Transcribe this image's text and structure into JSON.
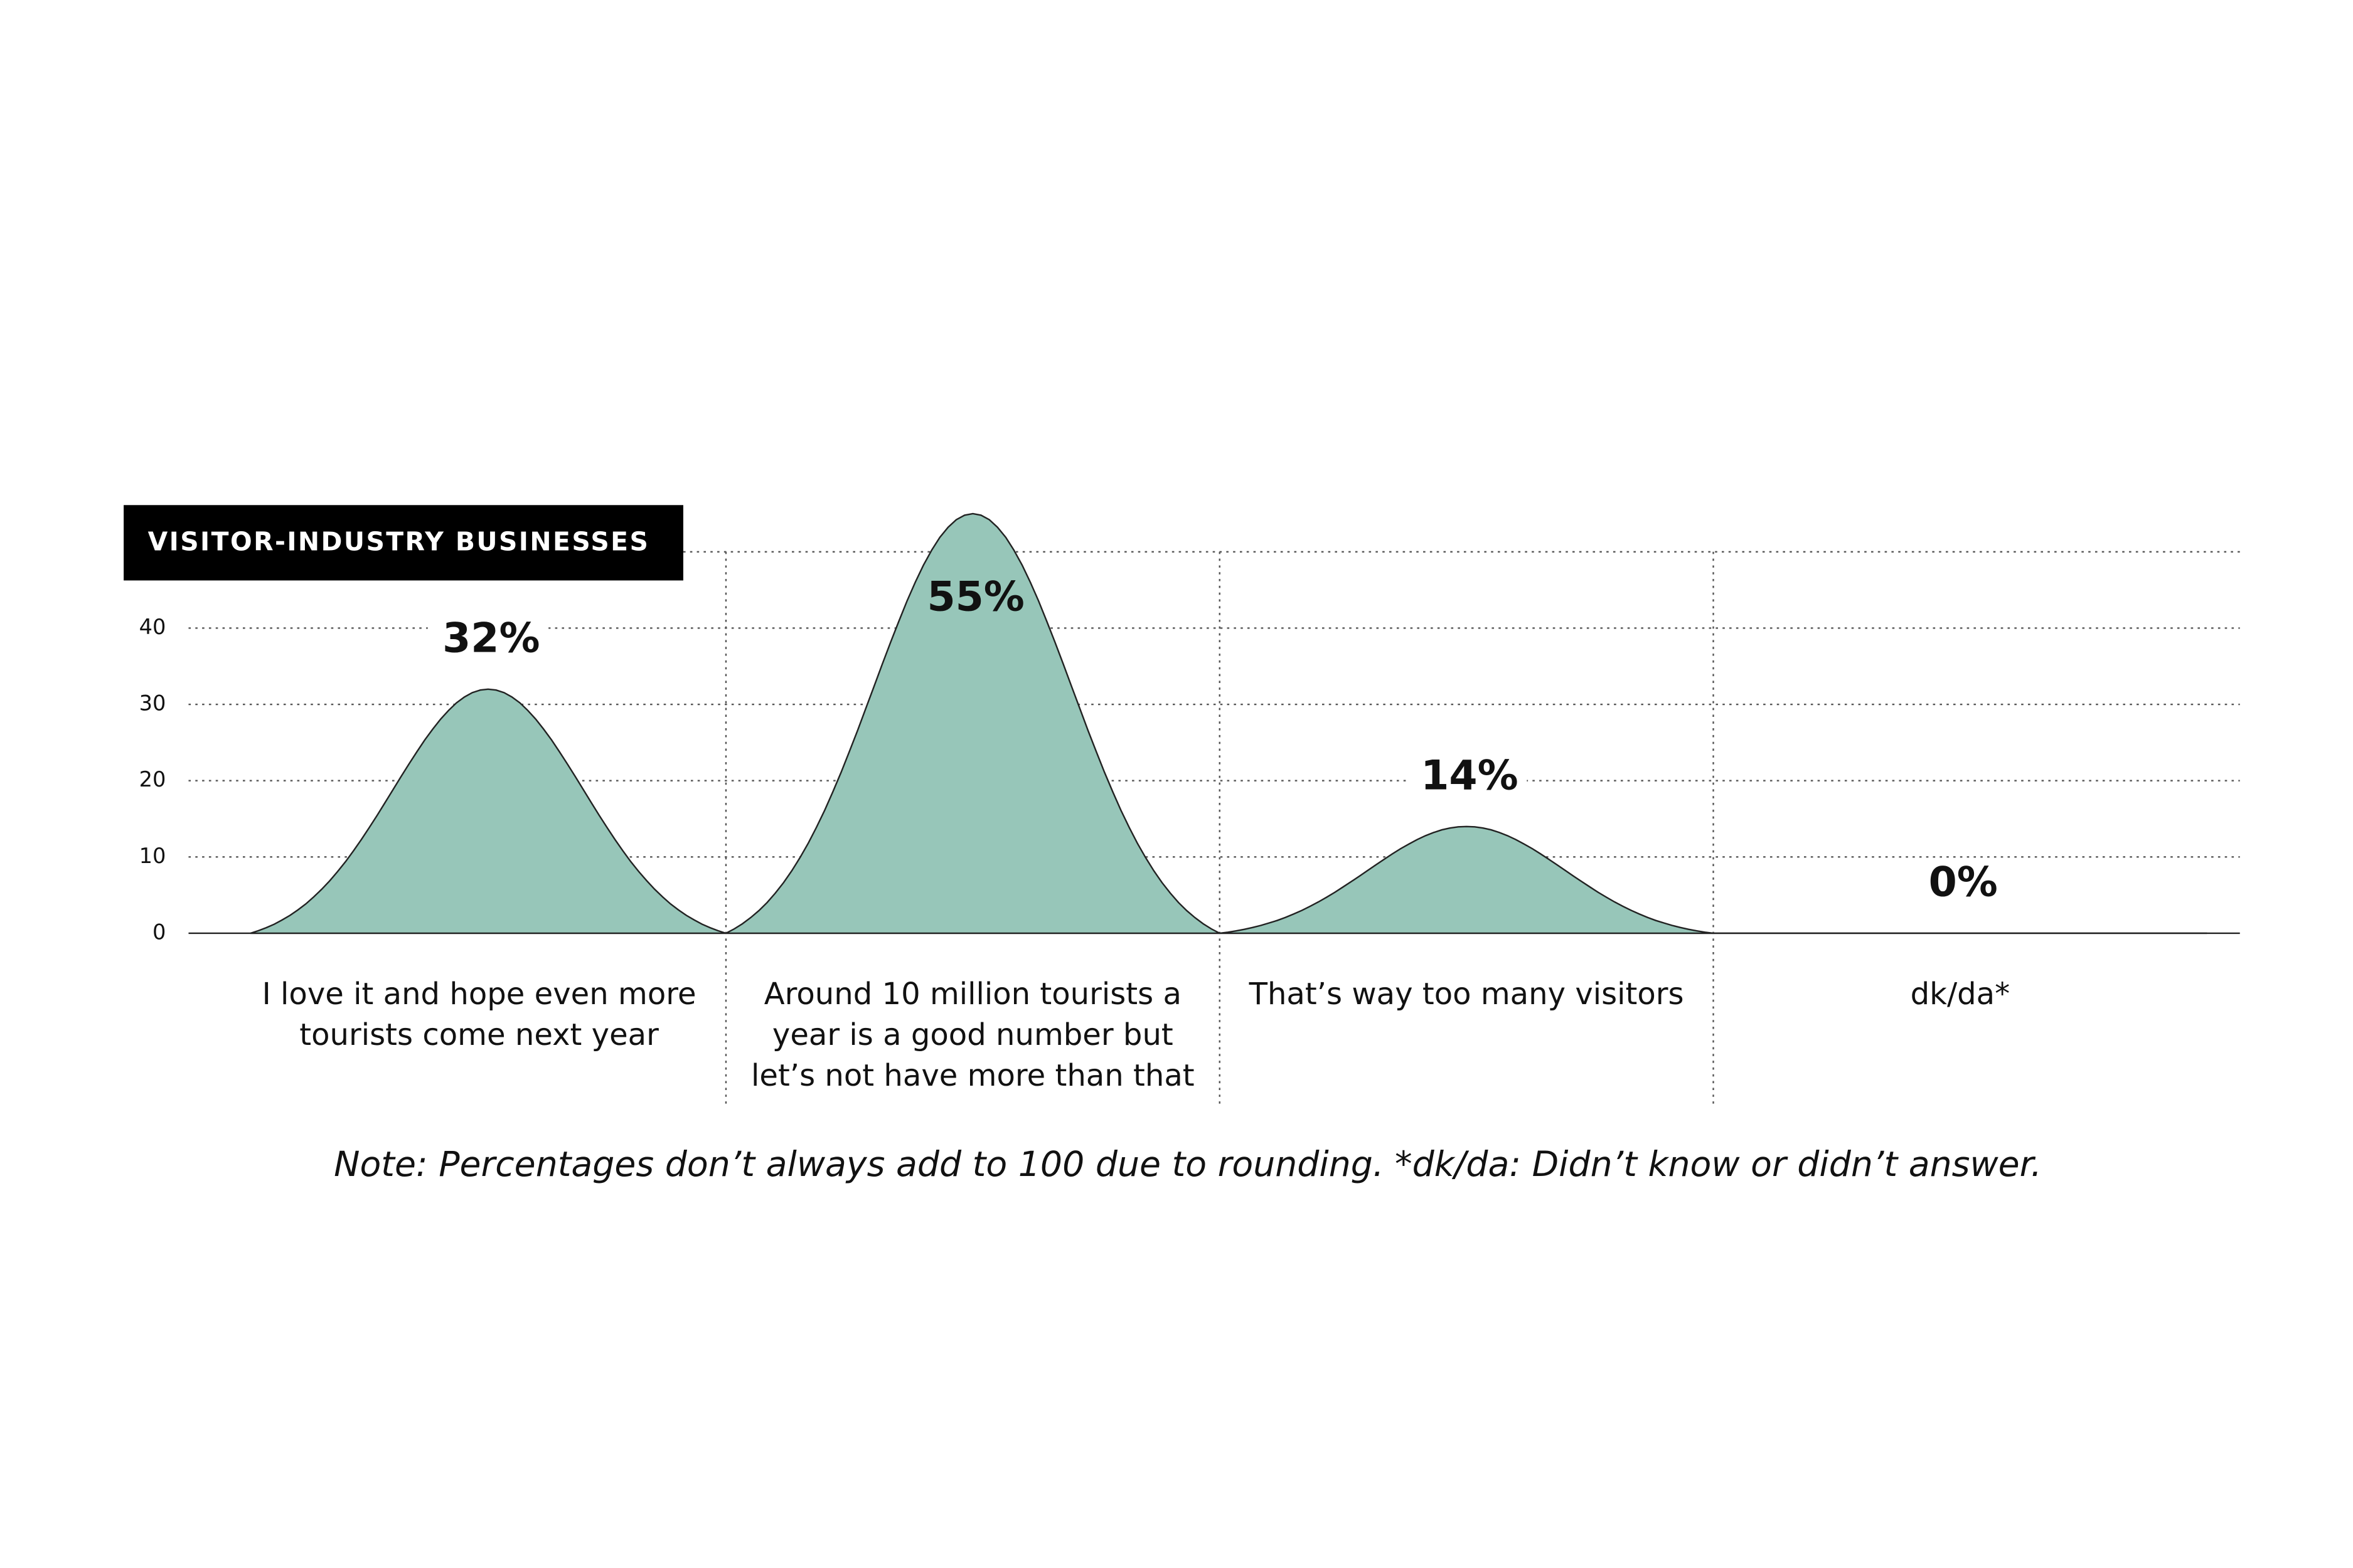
{
  "chart_data": {
    "type": "area",
    "title": "VISITOR-INDUSTRY BUSINESSES",
    "categories": [
      "I love it and hope even more tourists come next year",
      "Around 10 million tourists a year is a good number but let’s not have more than that",
      "That’s way too many visitors",
      "dk/da*"
    ],
    "values": [
      32,
      55,
      14,
      0
    ],
    "value_labels": [
      "32%",
      "55%",
      "14%",
      "0%"
    ],
    "color": "#97c6b9",
    "ylim": [
      0,
      50
    ],
    "yticks": [
      0,
      10,
      20,
      30,
      40
    ],
    "grid": true,
    "note": "Note: Percentages don’t always add to 100 due to rounding. *dk/da: Didn’t know or didn’t answer."
  }
}
